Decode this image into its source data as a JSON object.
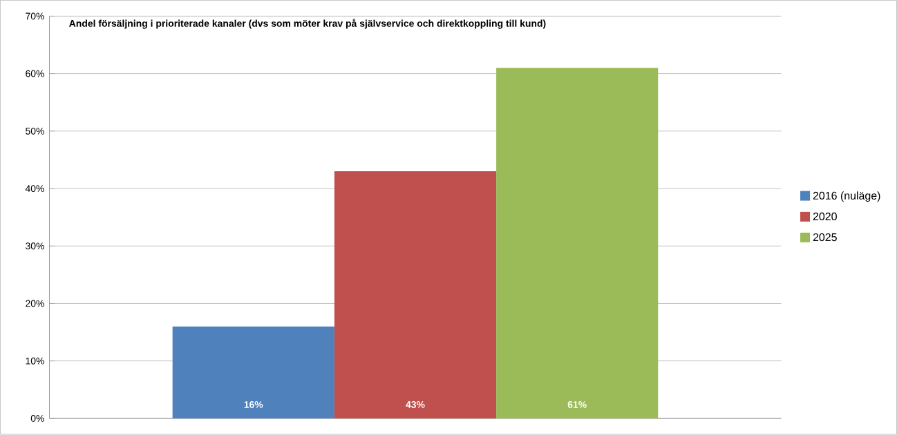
{
  "chart_data": {
    "type": "bar",
    "title": "Andel försäljning i prioriterade kanaler (dvs som möter krav på självservice och direktkoppling till kund)",
    "categories": [
      null
    ],
    "series": [
      {
        "name": "2016 (nuläge)",
        "color": "#4f81bd",
        "values": [
          16
        ],
        "value_labels": [
          "16%"
        ]
      },
      {
        "name": "2020",
        "color": "#c0504d",
        "values": [
          43
        ],
        "value_labels": [
          "43%"
        ]
      },
      {
        "name": "2025",
        "color": "#9bbb59",
        "values": [
          61
        ],
        "value_labels": [
          "61%"
        ]
      }
    ],
    "ylim": [
      0,
      70
    ],
    "yticks": [
      {
        "value": 0,
        "label": "0%"
      },
      {
        "value": 10,
        "label": "10%"
      },
      {
        "value": 20,
        "label": "20%"
      },
      {
        "value": 30,
        "label": "30%"
      },
      {
        "value": 40,
        "label": "40%"
      },
      {
        "value": 50,
        "label": "50%"
      },
      {
        "value": 60,
        "label": "60%"
      },
      {
        "value": 70,
        "label": "70%"
      }
    ],
    "grid": "y",
    "legend": "right"
  }
}
